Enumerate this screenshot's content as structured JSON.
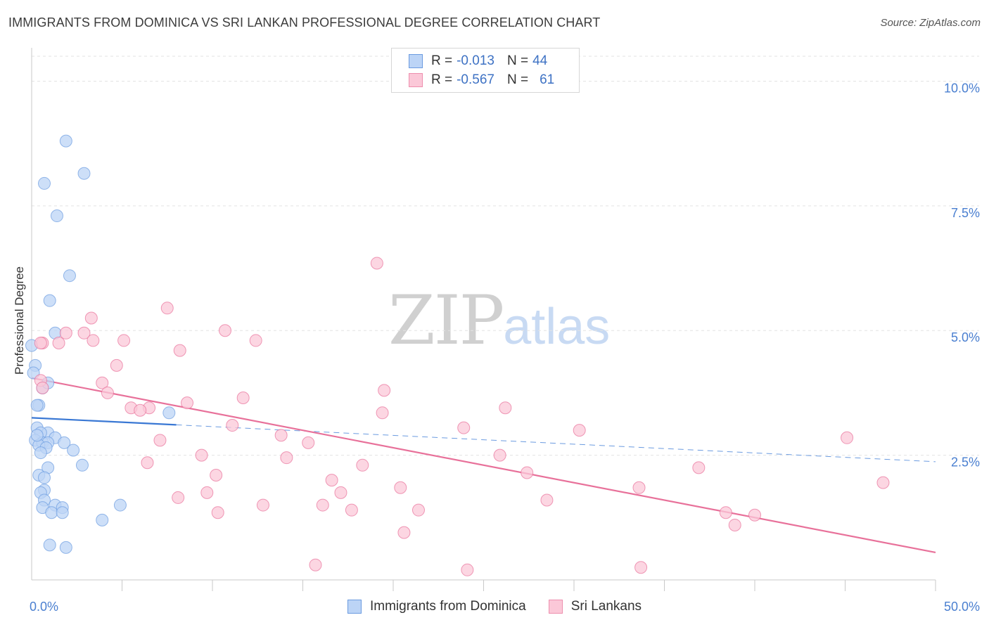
{
  "header": {
    "title": "IMMIGRANTS FROM DOMINICA VS SRI LANKAN PROFESSIONAL DEGREE CORRELATION CHART",
    "source": "Source: ZipAtlas.com"
  },
  "legend": {
    "rows": [
      {
        "r_label": "R =",
        "r_value": "-0.013",
        "n_label": "N =",
        "n_value": "44",
        "fill": "#bcd4f6",
        "stroke": "#6b9be0"
      },
      {
        "r_label": "R =",
        "r_value": "-0.567",
        "n_label": "N =",
        "n_value": "61",
        "fill": "#fbc8d8",
        "stroke": "#ee8fae"
      }
    ]
  },
  "bottom_legend": {
    "items": [
      {
        "label": "Immigrants from Dominica",
        "fill": "#bcd4f6",
        "stroke": "#6b9be0"
      },
      {
        "label": "Sri Lankans",
        "fill": "#fbc8d8",
        "stroke": "#ee8fae"
      }
    ]
  },
  "watermark": {
    "zip": "ZIP",
    "atlas": "atlas"
  },
  "chart_data": {
    "type": "scatter",
    "title": "IMMIGRANTS FROM DOMINICA VS SRI LANKAN PROFESSIONAL DEGREE CORRELATION CHART",
    "xlabel": "",
    "ylabel": "Professional Degree",
    "xlim": [
      0,
      50
    ],
    "ylim": [
      0,
      10.5
    ],
    "x_tick_labels": [
      {
        "value": 0,
        "label": "0.0%"
      },
      {
        "value": 50,
        "label": "50.0%"
      }
    ],
    "x_minor_ticks": [
      5,
      10,
      15,
      20,
      25,
      30,
      35,
      40,
      45,
      50
    ],
    "y_ticks": [
      {
        "value": 2.5,
        "label": "2.5%"
      },
      {
        "value": 5.0,
        "label": "5.0%"
      },
      {
        "value": 7.5,
        "label": "7.5%"
      },
      {
        "value": 10.0,
        "label": "10.0%"
      }
    ],
    "grid": "horizontal dashed",
    "legend_position": "top-center",
    "series": [
      {
        "name": "Immigrants from Dominica",
        "color": "#6b9be0",
        "fill": "#bcd4f6",
        "trend": {
          "x0": 0,
          "y0": 3.25,
          "x1": 50,
          "y1": 2.37,
          "solid_until_x": 8
        },
        "points": [
          [
            1.9,
            8.8
          ],
          [
            2.9,
            8.15
          ],
          [
            0.7,
            7.95
          ],
          [
            1.4,
            7.3
          ],
          [
            2.1,
            6.1
          ],
          [
            1.0,
            5.6
          ],
          [
            1.3,
            4.95
          ],
          [
            0.0,
            4.7
          ],
          [
            0.2,
            4.3
          ],
          [
            0.1,
            4.15
          ],
          [
            0.6,
            3.85
          ],
          [
            0.9,
            3.95
          ],
          [
            0.4,
            3.5
          ],
          [
            0.3,
            3.5
          ],
          [
            0.3,
            3.05
          ],
          [
            0.9,
            2.95
          ],
          [
            0.5,
            2.95
          ],
          [
            1.3,
            2.85
          ],
          [
            0.2,
            2.8
          ],
          [
            0.6,
            2.75
          ],
          [
            0.9,
            2.75
          ],
          [
            1.8,
            2.75
          ],
          [
            0.4,
            2.7
          ],
          [
            0.8,
            2.65
          ],
          [
            2.3,
            2.6
          ],
          [
            0.5,
            2.55
          ],
          [
            2.8,
            2.3
          ],
          [
            0.9,
            2.25
          ],
          [
            0.4,
            2.1
          ],
          [
            0.7,
            2.05
          ],
          [
            0.7,
            1.8
          ],
          [
            0.5,
            1.75
          ],
          [
            0.7,
            1.6
          ],
          [
            1.3,
            1.5
          ],
          [
            0.6,
            1.45
          ],
          [
            1.7,
            1.45
          ],
          [
            1.1,
            1.35
          ],
          [
            1.7,
            1.35
          ],
          [
            4.9,
            1.5
          ],
          [
            3.9,
            1.2
          ],
          [
            1.0,
            0.7
          ],
          [
            1.9,
            0.65
          ],
          [
            7.6,
            3.35
          ],
          [
            0.3,
            2.9
          ]
        ]
      },
      {
        "name": "Sri Lankans",
        "color": "#e8719a",
        "fill": "#fbc8d8",
        "trend": {
          "x0": 0,
          "y0": 4.05,
          "x1": 50,
          "y1": 0.55
        },
        "points": [
          [
            19.1,
            6.35
          ],
          [
            7.5,
            5.45
          ],
          [
            3.3,
            5.25
          ],
          [
            10.7,
            5.0
          ],
          [
            2.9,
            4.95
          ],
          [
            1.9,
            4.95
          ],
          [
            3.4,
            4.8
          ],
          [
            5.1,
            4.8
          ],
          [
            12.4,
            4.8
          ],
          [
            0.6,
            4.75
          ],
          [
            1.5,
            4.75
          ],
          [
            8.2,
            4.6
          ],
          [
            4.7,
            4.3
          ],
          [
            0.5,
            4.0
          ],
          [
            3.9,
            3.95
          ],
          [
            0.6,
            3.85
          ],
          [
            4.2,
            3.75
          ],
          [
            11.7,
            3.65
          ],
          [
            19.5,
            3.8
          ],
          [
            8.6,
            3.55
          ],
          [
            5.5,
            3.45
          ],
          [
            6.5,
            3.45
          ],
          [
            6.0,
            3.4
          ],
          [
            26.2,
            3.45
          ],
          [
            19.4,
            3.35
          ],
          [
            11.1,
            3.1
          ],
          [
            23.9,
            3.05
          ],
          [
            30.3,
            3.0
          ],
          [
            13.8,
            2.9
          ],
          [
            15.3,
            2.75
          ],
          [
            7.1,
            2.8
          ],
          [
            45.1,
            2.85
          ],
          [
            9.4,
            2.5
          ],
          [
            14.1,
            2.45
          ],
          [
            25.9,
            2.5
          ],
          [
            6.4,
            2.35
          ],
          [
            18.3,
            2.3
          ],
          [
            36.9,
            2.25
          ],
          [
            27.4,
            2.15
          ],
          [
            10.2,
            2.1
          ],
          [
            16.6,
            2.0
          ],
          [
            47.1,
            1.95
          ],
          [
            20.4,
            1.85
          ],
          [
            33.6,
            1.85
          ],
          [
            17.1,
            1.75
          ],
          [
            9.7,
            1.75
          ],
          [
            8.1,
            1.65
          ],
          [
            28.5,
            1.6
          ],
          [
            12.8,
            1.5
          ],
          [
            16.1,
            1.5
          ],
          [
            17.7,
            1.4
          ],
          [
            21.4,
            1.4
          ],
          [
            10.3,
            1.35
          ],
          [
            38.4,
            1.35
          ],
          [
            40.0,
            1.3
          ],
          [
            38.9,
            1.1
          ],
          [
            20.6,
            0.95
          ],
          [
            15.7,
            0.3
          ],
          [
            24.1,
            0.2
          ],
          [
            33.7,
            0.25
          ],
          [
            0.5,
            4.75
          ]
        ]
      }
    ]
  }
}
